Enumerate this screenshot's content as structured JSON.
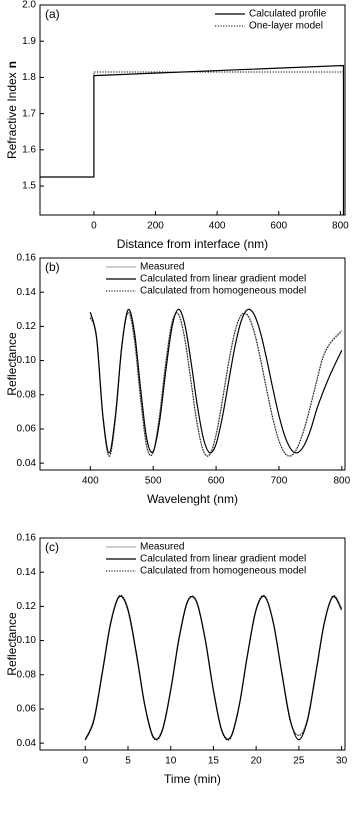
{
  "chart_data": [
    {
      "type": "line",
      "panel_label": "(a)",
      "xlabel": "Distance from interface (nm)",
      "ylabel": "Refractive Index",
      "ylabel_var": "n",
      "xlim": [
        -175,
        815
      ],
      "xticks": [
        0,
        200,
        400,
        600,
        800
      ],
      "ylim": [
        1.42,
        2.0
      ],
      "yticks": [
        1.5,
        1.6,
        1.7,
        1.8,
        1.9,
        {
          "value": 2,
          "label": "2.0"
        }
      ],
      "legend": "upper right",
      "series": [
        {
          "name": "Calculated profile",
          "color": "#000000",
          "linestyle": "solid",
          "x": [
            -175,
            0,
            0,
            810,
            810
          ],
          "values": [
            1.525,
            1.525,
            1.805,
            1.833,
            1.42
          ]
        },
        {
          "name": "One-layer model",
          "color": "#000000",
          "linestyle": "dotted",
          "x": [
            -175,
            0,
            0,
            815,
            815
          ],
          "values": [
            1.525,
            1.525,
            1.815,
            1.815,
            1.42
          ]
        }
      ]
    },
    {
      "type": "line",
      "panel_label": "(b)",
      "xlabel": "Wavelenght (nm)",
      "ylabel": "Reflectance",
      "smooth": true,
      "xlim": [
        320,
        805
      ],
      "xticks": [
        400,
        500,
        600,
        700,
        800
      ],
      "ylim": [
        0.036,
        0.16
      ],
      "yticks": [
        0.04,
        0.06,
        0.08,
        {
          "value": 0.1,
          "label": "0.10"
        },
        0.12,
        0.14,
        0.16
      ],
      "legend": "upper left",
      "x": [
        400,
        410,
        420,
        430,
        440,
        450,
        460,
        470,
        480,
        490,
        500,
        510,
        520,
        530,
        540,
        550,
        560,
        570,
        580,
        590,
        600,
        610,
        620,
        630,
        640,
        650,
        660,
        670,
        680,
        690,
        700,
        710,
        720,
        730,
        740,
        750,
        760,
        770,
        780,
        790,
        800
      ],
      "series": [
        {
          "name": "Measured",
          "color": "#b0b0b0",
          "linestyle": "solid",
          "values": [
            0.1262,
            0.1128,
            0.0665,
            0.0438,
            0.0667,
            0.1082,
            0.1283,
            0.1122,
            0.0769,
            0.0489,
            0.0465,
            0.0681,
            0.0992,
            0.1225,
            0.1271,
            0.1128,
            0.0876,
            0.0625,
            0.0468,
            0.0452,
            0.0569,
            0.0771,
            0.0993,
            0.1171,
            0.1265,
            0.1263,
            0.1171,
            0.1015,
            0.0834,
            0.0662,
            0.053,
            0.0456,
            0.0447,
            0.05,
            0.0602,
            0.0737,
            0.0884,
            0.1022,
            0.1095,
            0.1142,
            0.1178
          ]
        },
        {
          "name": "Calculated from linear gradient model",
          "color": "#000000",
          "linestyle": "solid",
          "values": [
            0.1283,
            0.1133,
            0.0678,
            0.046,
            0.068,
            0.1082,
            0.1297,
            0.1171,
            0.0834,
            0.0538,
            0.0468,
            0.0641,
            0.0939,
            0.1198,
            0.13,
            0.1216,
            0.0997,
            0.0741,
            0.0542,
            0.0461,
            0.0512,
            0.0669,
            0.0878,
            0.1082,
            0.1232,
            0.1298,
            0.1273,
            0.1171,
            0.1016,
            0.0841,
            0.0678,
            0.0551,
            0.0477,
            0.0462,
            0.0504,
            0.0592,
            0.0714,
            0.0815,
            0.0905,
            0.0985,
            0.106
          ]
        },
        {
          "name": "Calculated from homogeneous model",
          "color": "#000000",
          "linestyle": "dotted",
          "values": [
            0.1248,
            0.114,
            0.0678,
            0.044,
            0.0659,
            0.107,
            0.1279,
            0.1131,
            0.0778,
            0.0494,
            0.0461,
            0.0673,
            0.0985,
            0.1222,
            0.1274,
            0.1135,
            0.0884,
            0.0631,
            0.047,
            0.0449,
            0.0563,
            0.0763,
            0.0986,
            0.1168,
            0.1267,
            0.1268,
            0.1178,
            0.1023,
            0.0841,
            0.0667,
            0.0532,
            0.0455,
            0.0444,
            0.0495,
            0.0596,
            0.073,
            0.0878,
            0.1018,
            0.1092,
            0.1135,
            0.117
          ]
        }
      ]
    },
    {
      "type": "line",
      "panel_label": "(c)",
      "xlabel": "Time (min)",
      "ylabel": "Reflectance",
      "smooth": true,
      "xlim": [
        -5.3,
        30.4
      ],
      "xticks": [
        0,
        5,
        10,
        15,
        20,
        25,
        30
      ],
      "ylim": [
        0.036,
        0.16
      ],
      "yticks": [
        0.04,
        0.06,
        0.08,
        {
          "value": 0.1,
          "label": "0.10"
        },
        0.12,
        0.14,
        0.16
      ],
      "legend": "upper left",
      "x": [
        0,
        1,
        2,
        3,
        4,
        5,
        6,
        7,
        8,
        9,
        10,
        11,
        12,
        13,
        14,
        15,
        16,
        17,
        18,
        19,
        20,
        21,
        22,
        23,
        24,
        25,
        26,
        27,
        28,
        29,
        30
      ],
      "series": [
        {
          "name": "Measured",
          "color": "#b0b0b0",
          "linestyle": "solid",
          "values": [
            0.0425,
            0.0542,
            0.0825,
            0.1118,
            0.1262,
            0.1172,
            0.0905,
            0.0606,
            0.043,
            0.0478,
            0.072,
            0.1028,
            0.1236,
            0.1226,
            0.1012,
            0.0703,
            0.0468,
            0.0436,
            0.0622,
            0.0927,
            0.1186,
            0.1259,
            0.1102,
            0.0806,
            0.053,
            0.0447,
            0.0541,
            0.0822,
            0.1115,
            0.126,
            0.1188
          ]
        },
        {
          "name": "Calculated from linear gradient model",
          "color": "#000000",
          "linestyle": "solid",
          "values": [
            0.042,
            0.0534,
            0.0814,
            0.1108,
            0.1257,
            0.118,
            0.0919,
            0.0615,
            0.0433,
            0.0472,
            0.071,
            0.1019,
            0.1231,
            0.1231,
            0.1019,
            0.071,
            0.0472,
            0.0433,
            0.0615,
            0.0919,
            0.118,
            0.1257,
            0.1108,
            0.0814,
            0.0534,
            0.042,
            0.0534,
            0.0814,
            0.1108,
            0.1257,
            0.118
          ]
        },
        {
          "name": "Calculated from homogeneous model",
          "color": "#000000",
          "linestyle": "dotted",
          "values": [
            0.0418,
            0.0528,
            0.0808,
            0.1104,
            0.1262,
            0.1186,
            0.0923,
            0.0612,
            0.0428,
            0.0468,
            0.0707,
            0.1021,
            0.1235,
            0.1234,
            0.1016,
            0.0705,
            0.0466,
            0.0428,
            0.0612,
            0.0921,
            0.1184,
            0.1262,
            0.1105,
            0.0808,
            0.0526,
            0.0445,
            0.0528,
            0.0808,
            0.1104,
            0.1262,
            0.1186
          ]
        }
      ]
    }
  ]
}
